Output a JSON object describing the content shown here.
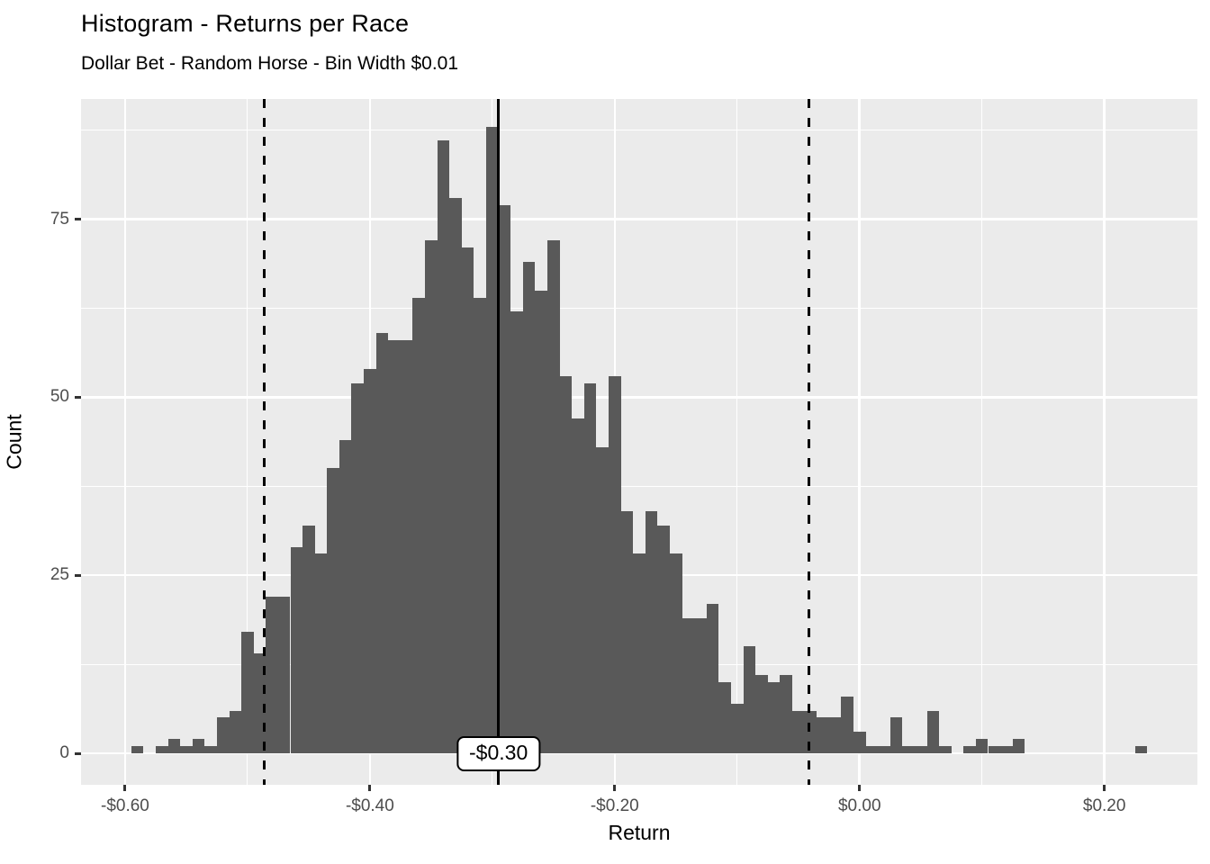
{
  "chart_data": {
    "type": "bar",
    "subtype": "histogram",
    "title": "Histogram - Returns per Race",
    "subtitle": "Dollar Bet - Random Horse - Bin Width $0.01",
    "xlabel": "Return",
    "ylabel": "Count",
    "bin_width": 0.01,
    "total_count": 2000,
    "bin_centers": [
      -0.59,
      -0.58,
      -0.57,
      -0.56,
      -0.55,
      -0.54,
      -0.53,
      -0.52,
      -0.51,
      -0.5,
      -0.49,
      -0.48,
      -0.47,
      -0.46,
      -0.45,
      -0.44,
      -0.43,
      -0.42,
      -0.41,
      -0.4,
      -0.39,
      -0.38,
      -0.37,
      -0.36,
      -0.35,
      -0.34,
      -0.33,
      -0.32,
      -0.31,
      -0.3,
      -0.29,
      -0.28,
      -0.27,
      -0.26,
      -0.25,
      -0.24,
      -0.23,
      -0.22,
      -0.21,
      -0.2,
      -0.19,
      -0.18,
      -0.17,
      -0.16,
      -0.15,
      -0.14,
      -0.13,
      -0.12,
      -0.11,
      -0.1,
      -0.09,
      -0.08,
      -0.07,
      -0.06,
      -0.05,
      -0.04,
      -0.03,
      -0.02,
      -0.01,
      0.0,
      0.01,
      0.02,
      0.03,
      0.04,
      0.05,
      0.06,
      0.07,
      0.08,
      0.09,
      0.1,
      0.11,
      0.12,
      0.13,
      0.14,
      0.15,
      0.16,
      0.17,
      0.18,
      0.19,
      0.2,
      0.21,
      0.22,
      0.23
    ],
    "counts": [
      1,
      0,
      1,
      2,
      1,
      2,
      1,
      5,
      6,
      17,
      14,
      22,
      22,
      29,
      32,
      28,
      40,
      44,
      52,
      54,
      59,
      58,
      58,
      64,
      72,
      86,
      78,
      71,
      64,
      88,
      77,
      62,
      69,
      65,
      72,
      53,
      47,
      52,
      43,
      53,
      34,
      28,
      34,
      32,
      28,
      19,
      19,
      21,
      10,
      7,
      15,
      11,
      10,
      11,
      6,
      6,
      5,
      5,
      8,
      3,
      1,
      1,
      5,
      1,
      1,
      6,
      1,
      0,
      1,
      2,
      1,
      1,
      2,
      0,
      0,
      0,
      0,
      0,
      0,
      0,
      0,
      0,
      1
    ],
    "x_ticks": [
      {
        "value": -0.6,
        "label": "-$0.60"
      },
      {
        "value": -0.4,
        "label": "-$0.40"
      },
      {
        "value": -0.2,
        "label": "-$0.20"
      },
      {
        "value": 0.0,
        "label": "$0.00"
      },
      {
        "value": 0.2,
        "label": "$0.20"
      }
    ],
    "y_ticks": [
      {
        "value": 0,
        "label": "0"
      },
      {
        "value": 25,
        "label": "25"
      },
      {
        "value": 50,
        "label": "50"
      },
      {
        "value": 75,
        "label": "75"
      }
    ],
    "x_minor_ticks": [
      -0.5,
      -0.3,
      -0.1,
      0.1
    ],
    "y_minor_ticks": [
      12.5,
      37.5,
      62.5,
      87.5
    ],
    "xlim": [
      -0.636,
      0.276
    ],
    "ylim": [
      -4.42,
      91.87
    ],
    "grid": true,
    "legend": "none",
    "vlines": [
      {
        "x": -0.295,
        "style": "solid",
        "label": "-$0.30"
      },
      {
        "x": -0.486,
        "style": "dashed",
        "label": ""
      },
      {
        "x": -0.041,
        "style": "dashed",
        "label": ""
      }
    ],
    "colors": {
      "panel_bg": "#EBEBEB",
      "bar_fill": "#595959",
      "grid": "#FFFFFF",
      "tick_label": "#4D4D4D",
      "axis_tick": "#333333",
      "text": "#000000",
      "line": "#000000",
      "annotation_bg": "#FFFFFF"
    }
  }
}
